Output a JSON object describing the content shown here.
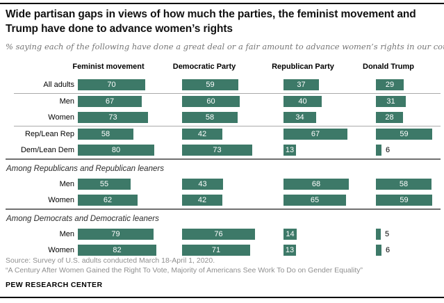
{
  "header": {
    "title": "Wide partisan gaps in views of how much the parties, the feminist movement and Trump have done to advance women’s rights",
    "subtitle": "% saying each of the following have done a great deal or a fair amount to advance women’s rights in our country"
  },
  "chart_data": {
    "type": "bar",
    "orientation": "horizontal",
    "unit": "%",
    "value_range": [
      0,
      100
    ],
    "bar_color": "#3d7968",
    "columns": [
      "Feminist movement",
      "Democratic Party",
      "Republican Party",
      "Donald Trump"
    ],
    "sections": [
      {
        "heading": "",
        "rows": [
          {
            "label": "All adults",
            "values": [
              70,
              59,
              37,
              29
            ],
            "divider_after": "light"
          },
          {
            "label": "Men",
            "values": [
              67,
              60,
              40,
              31
            ],
            "divider_after": ""
          },
          {
            "label": "Women",
            "values": [
              73,
              58,
              34,
              28
            ],
            "divider_after": "light"
          },
          {
            "label": "Rep/Lean Rep",
            "values": [
              58,
              42,
              67,
              59
            ],
            "divider_after": ""
          },
          {
            "label": "Dem/Lean Dem",
            "values": [
              80,
              73,
              13,
              6
            ],
            "divider_after": "dark"
          }
        ]
      },
      {
        "heading": "Among Republicans and Republican leaners",
        "rows": [
          {
            "label": "Men",
            "values": [
              55,
              43,
              68,
              58
            ],
            "divider_after": ""
          },
          {
            "label": "Women",
            "values": [
              62,
              42,
              65,
              59
            ],
            "divider_after": "dark"
          }
        ]
      },
      {
        "heading": "Among Democrats and Democratic leaners",
        "rows": [
          {
            "label": "Men",
            "values": [
              79,
              76,
              14,
              5
            ],
            "divider_after": ""
          },
          {
            "label": "Women",
            "values": [
              82,
              71,
              13,
              6
            ],
            "divider_after": ""
          }
        ]
      }
    ]
  },
  "footer": {
    "source_line1": "Source: Survey of U.S. adults conducted March 18-April 1, 2020.",
    "source_line2": "“A Century After Women Gained the Right To Vote, Majority of Americans See Work To Do on Gender Equality”",
    "brand": "PEW RESEARCH CENTER"
  }
}
